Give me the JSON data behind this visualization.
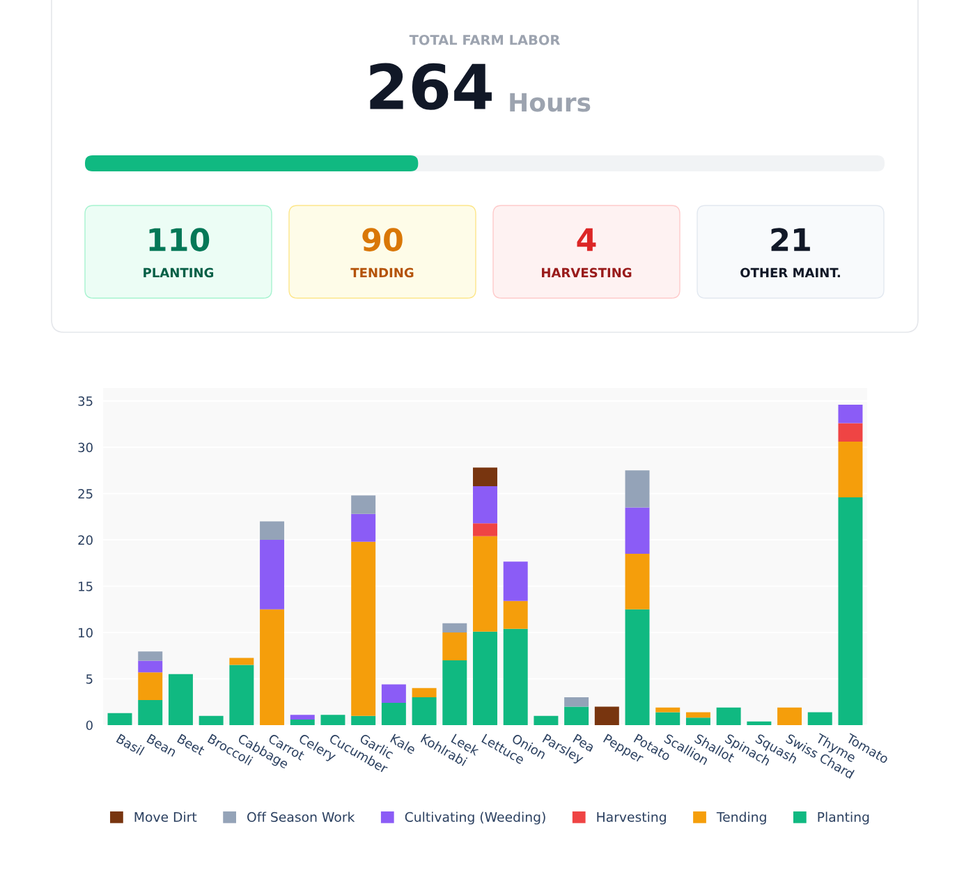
{
  "chart_data": [
    {
      "type": "other",
      "title": "TOTAL FARM LABOR",
      "annotations": [
        "264",
        "Hours",
        "110",
        "PLANTING",
        "90",
        "TENDING",
        "4",
        "HARVESTING",
        "21",
        "OTHER MAINT."
      ],
      "color": "#10b981"
    },
    {
      "type": "bar",
      "stacked": true,
      "categories": [
        "Basil",
        "Bean",
        "Beet",
        "Broccoli",
        "Cabbage",
        "Carrot",
        "Celery",
        "Cucumber",
        "Garlic",
        "Kale",
        "Kohlrabi",
        "Leek",
        "Lettuce",
        "Onion",
        "Parsley",
        "Pea",
        "Pepper",
        "Potato",
        "Scallion",
        "Shallot",
        "Spinach",
        "Squash",
        "Swiss Chard",
        "Thyme",
        "Tomato"
      ],
      "series": [
        {
          "name": "Planting",
          "color": "#10b981",
          "values": [
            1.3,
            2.7,
            5.5,
            1,
            6.5,
            null,
            0.6,
            1.1,
            1,
            2.4,
            3,
            7,
            10.1,
            10.4,
            1,
            2,
            null,
            12.5,
            1.4,
            0.8,
            1.9,
            0.4,
            null,
            1.4,
            24.6
          ]
        },
        {
          "name": "Tending",
          "color": "#f59e0b",
          "values": [
            null,
            3,
            null,
            null,
            0.75,
            12.5,
            null,
            null,
            18.8,
            null,
            1,
            3,
            10.3,
            3,
            null,
            null,
            null,
            6,
            0.5,
            0.6,
            null,
            null,
            1.9,
            null,
            6
          ]
        },
        {
          "name": "Harvesting",
          "color": "#ef4444",
          "values": [
            null,
            null,
            null,
            null,
            null,
            null,
            null,
            null,
            null,
            null,
            null,
            null,
            1.4,
            null,
            null,
            null,
            null,
            null,
            null,
            null,
            null,
            null,
            null,
            null,
            2
          ]
        },
        {
          "name": "Cultivating (Weeding)",
          "color": "#8b5cf6",
          "values": [
            null,
            1.25,
            null,
            null,
            null,
            7.5,
            0.5,
            null,
            3,
            2,
            null,
            null,
            4,
            4.25,
            null,
            null,
            null,
            5,
            null,
            null,
            null,
            null,
            null,
            null,
            2
          ]
        },
        {
          "name": "Off Season Work",
          "color": "#94a3b8",
          "values": [
            null,
            1,
            null,
            null,
            null,
            2,
            null,
            null,
            2,
            null,
            null,
            1,
            null,
            null,
            null,
            1,
            null,
            4,
            null,
            null,
            null,
            null,
            null,
            null,
            null
          ]
        },
        {
          "name": "Move Dirt",
          "color": "#78350f",
          "values": [
            null,
            null,
            null,
            null,
            null,
            null,
            null,
            null,
            null,
            null,
            null,
            null,
            2,
            null,
            null,
            null,
            2,
            null,
            null,
            null,
            null,
            null,
            null,
            null,
            null
          ]
        }
      ],
      "ylim": [
        0,
        36.4
      ],
      "yticks": [
        0,
        5,
        10,
        15,
        20,
        25,
        30,
        35
      ],
      "grid": "y",
      "legend": "bottom"
    }
  ]
}
